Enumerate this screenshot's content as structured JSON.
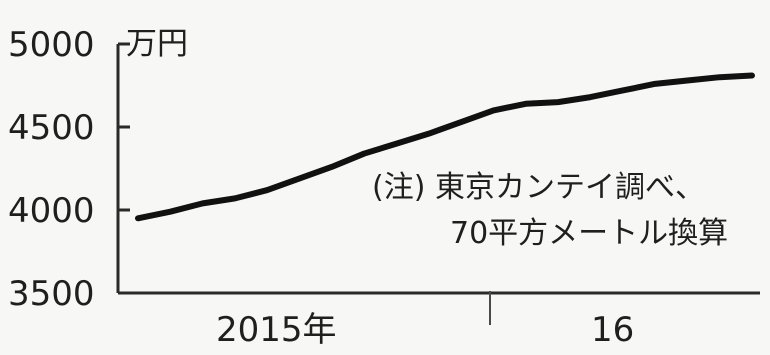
{
  "chart_data": {
    "type": "line",
    "unit_label": "万円",
    "x_labels": [
      "2015年",
      "16"
    ],
    "ylim": [
      3500,
      5000
    ],
    "y_ticks": [
      3500,
      4000,
      4500,
      5000
    ],
    "grid": false,
    "series": [
      {
        "x": [
          "2015-01",
          "2015-02",
          "2015-03",
          "2015-04",
          "2015-05",
          "2015-06",
          "2015-07",
          "2015-08",
          "2015-09",
          "2015-10",
          "2015-11",
          "2015-12",
          "2016-01",
          "2016-02",
          "2016-03",
          "2016-04",
          "2016-05",
          "2016-06",
          "2016-07",
          "2016-08"
        ],
        "values": [
          3950,
          3990,
          4040,
          4070,
          4120,
          4190,
          4260,
          4340,
          4400,
          4460,
          4530,
          4600,
          4640,
          4650,
          4680,
          4720,
          4760,
          4780,
          4800,
          4810
        ]
      }
    ],
    "note_lines": [
      "(注) 東京カンテイ調べ、",
      "70平方メートル換算"
    ]
  }
}
